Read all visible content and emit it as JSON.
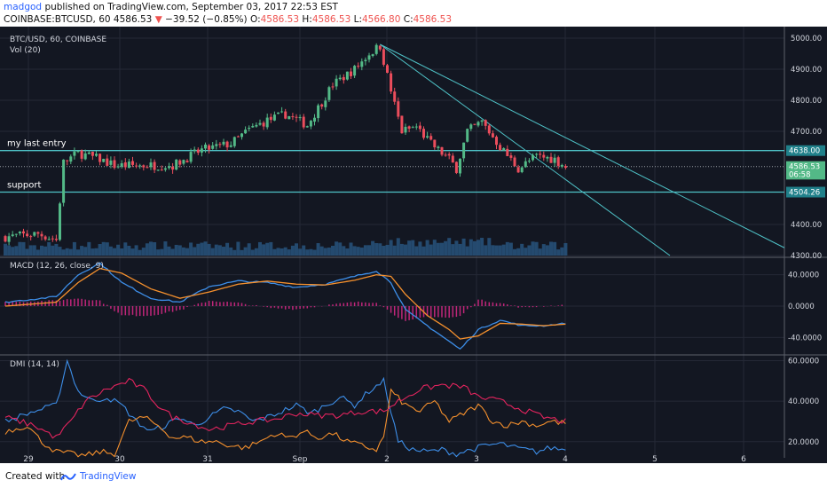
{
  "header": {
    "author": "madgod",
    "published_text": "published on TradingView.com, September 03, 2017 22:53 EST",
    "symbol_interval": "COINBASE:BTCUSD, 60",
    "last_price": "4586.53",
    "change": "−39.52 (−0.85%)",
    "ohlc": {
      "o_label": "O:",
      "o": "4586.53",
      "h_label": "H:",
      "h": "4586.53",
      "l_label": "L:",
      "l": "4566.80",
      "c_label": "C:",
      "c": "4586.53"
    }
  },
  "footer": {
    "created_with": "Created with",
    "brand": "TradingView"
  },
  "colors": {
    "background": "#131722",
    "up": "#53b987",
    "down": "#eb4d5c",
    "line_teal": "#4fc3c8",
    "macd": "#3d8ee8",
    "signal": "#f5902d",
    "hist": "#c0267a",
    "dmi_plus": "#3d8ee8",
    "dmi_minus": "#f5902d",
    "adx": "#e4245e",
    "volume": "#2b5c8a"
  },
  "chart_data": {
    "type": "candlestick",
    "title": "BTC/USD, 60, COINBASE",
    "volume_label": "Vol (20)",
    "y_ticks": [
      5000,
      4900,
      4800,
      4700,
      4400,
      4300
    ],
    "ylim": [
      4300,
      5020
    ],
    "x_ticks": [
      "29",
      "30",
      "31",
      "Sep",
      "2",
      "3",
      "4",
      "5",
      "6"
    ],
    "price_labels": {
      "top": "4638.00",
      "last": "4586.53",
      "countdown": "06:58",
      "bottom": "4504.26"
    },
    "levels": [
      {
        "name": "my last entry",
        "value": 4638
      },
      {
        "name": "support",
        "value": 4504.26
      }
    ],
    "price_keypoints": [
      [
        0,
        4360
      ],
      [
        9,
        4370
      ],
      [
        14,
        4350
      ],
      [
        16,
        4600
      ],
      [
        20,
        4630
      ],
      [
        26,
        4610
      ],
      [
        30,
        4590
      ],
      [
        38,
        4590
      ],
      [
        46,
        4590
      ],
      [
        54,
        4640
      ],
      [
        62,
        4660
      ],
      [
        67,
        4705
      ],
      [
        72,
        4735
      ],
      [
        77,
        4755
      ],
      [
        83,
        4720
      ],
      [
        90,
        4850
      ],
      [
        96,
        4900
      ],
      [
        100,
        4950
      ],
      [
        103,
        4975
      ],
      [
        106,
        4830
      ],
      [
        109,
        4700
      ],
      [
        113,
        4715
      ],
      [
        117,
        4660
      ],
      [
        122,
        4610
      ],
      [
        124,
        4580
      ],
      [
        127,
        4700
      ],
      [
        131,
        4730
      ],
      [
        136,
        4650
      ],
      [
        141,
        4580
      ],
      [
        146,
        4620
      ],
      [
        151,
        4610
      ],
      [
        154,
        4586
      ]
    ],
    "macd": {
      "label": "MACD (12, 26, close, 9)",
      "y_ticks": [
        "40.0000",
        "0.0000",
        "-40.0000"
      ],
      "ylim": [
        -60,
        60
      ],
      "macd_keypoints": [
        [
          0,
          5
        ],
        [
          14,
          12
        ],
        [
          20,
          40
        ],
        [
          26,
          55
        ],
        [
          32,
          30
        ],
        [
          40,
          10
        ],
        [
          48,
          5
        ],
        [
          56,
          25
        ],
        [
          64,
          32
        ],
        [
          72,
          30
        ],
        [
          80,
          24
        ],
        [
          88,
          28
        ],
        [
          96,
          38
        ],
        [
          102,
          45
        ],
        [
          106,
          30
        ],
        [
          110,
          -5
        ],
        [
          116,
          -25
        ],
        [
          122,
          -45
        ],
        [
          125,
          -55
        ],
        [
          130,
          -30
        ],
        [
          136,
          -18
        ],
        [
          142,
          -25
        ],
        [
          148,
          -25
        ],
        [
          154,
          -22
        ]
      ],
      "signal_keypoints": [
        [
          0,
          0
        ],
        [
          14,
          5
        ],
        [
          20,
          30
        ],
        [
          26,
          48
        ],
        [
          32,
          42
        ],
        [
          40,
          22
        ],
        [
          48,
          10
        ],
        [
          56,
          18
        ],
        [
          64,
          28
        ],
        [
          72,
          32
        ],
        [
          80,
          28
        ],
        [
          88,
          27
        ],
        [
          96,
          33
        ],
        [
          102,
          40
        ],
        [
          106,
          38
        ],
        [
          110,
          15
        ],
        [
          116,
          -12
        ],
        [
          122,
          -30
        ],
        [
          125,
          -42
        ],
        [
          130,
          -38
        ],
        [
          136,
          -22
        ],
        [
          142,
          -23
        ],
        [
          148,
          -25
        ],
        [
          154,
          -23
        ]
      ]
    },
    "dmi": {
      "label": "DMI (14, 14)",
      "y_ticks": [
        "60.0000",
        "40.0000",
        "20.0000"
      ],
      "ylim": [
        12,
        62
      ],
      "plus_di_keypoints": [
        [
          0,
          30
        ],
        [
          8,
          35
        ],
        [
          14,
          38
        ],
        [
          17,
          60
        ],
        [
          20,
          45
        ],
        [
          24,
          40
        ],
        [
          28,
          42
        ],
        [
          32,
          38
        ],
        [
          36,
          30
        ],
        [
          40,
          25
        ],
        [
          44,
          28
        ],
        [
          48,
          32
        ],
        [
          52,
          28
        ],
        [
          56,
          32
        ],
        [
          60,
          36
        ],
        [
          64,
          35
        ],
        [
          68,
          30
        ],
        [
          72,
          32
        ],
        [
          76,
          35
        ],
        [
          80,
          38
        ],
        [
          84,
          34
        ],
        [
          88,
          38
        ],
        [
          92,
          42
        ],
        [
          96,
          38
        ],
        [
          100,
          45
        ],
        [
          104,
          50
        ],
        [
          108,
          20
        ],
        [
          112,
          16
        ],
        [
          116,
          15
        ],
        [
          120,
          16
        ],
        [
          124,
          14
        ],
        [
          128,
          16
        ],
        [
          132,
          18
        ],
        [
          136,
          19
        ],
        [
          140,
          17
        ],
        [
          146,
          15
        ],
        [
          150,
          17
        ],
        [
          154,
          16
        ]
      ],
      "minus_di_keypoints": [
        [
          0,
          25
        ],
        [
          6,
          28
        ],
        [
          10,
          20
        ],
        [
          14,
          15
        ],
        [
          18,
          14
        ],
        [
          22,
          13
        ],
        [
          26,
          15
        ],
        [
          30,
          14
        ],
        [
          34,
          30
        ],
        [
          38,
          32
        ],
        [
          42,
          28
        ],
        [
          46,
          22
        ],
        [
          50,
          22
        ],
        [
          54,
          20
        ],
        [
          58,
          20
        ],
        [
          62,
          18
        ],
        [
          66,
          17
        ],
        [
          70,
          20
        ],
        [
          74,
          24
        ],
        [
          78,
          22
        ],
        [
          82,
          25
        ],
        [
          86,
          22
        ],
        [
          90,
          24
        ],
        [
          94,
          20
        ],
        [
          98,
          18
        ],
        [
          102,
          16
        ],
        [
          104,
          22
        ],
        [
          106,
          45
        ],
        [
          110,
          38
        ],
        [
          114,
          35
        ],
        [
          118,
          40
        ],
        [
          122,
          30
        ],
        [
          126,
          34
        ],
        [
          130,
          38
        ],
        [
          134,
          30
        ],
        [
          138,
          28
        ],
        [
          142,
          30
        ],
        [
          146,
          28
        ],
        [
          150,
          30
        ],
        [
          154,
          29
        ]
      ],
      "adx_keypoints": [
        [
          0,
          32
        ],
        [
          8,
          28
        ],
        [
          14,
          22
        ],
        [
          18,
          30
        ],
        [
          22,
          40
        ],
        [
          28,
          46
        ],
        [
          34,
          50
        ],
        [
          38,
          46
        ],
        [
          42,
          38
        ],
        [
          46,
          32
        ],
        [
          50,
          30
        ],
        [
          56,
          26
        ],
        [
          62,
          28
        ],
        [
          68,
          30
        ],
        [
          74,
          31
        ],
        [
          80,
          34
        ],
        [
          86,
          33
        ],
        [
          92,
          33
        ],
        [
          98,
          35
        ],
        [
          104,
          35
        ],
        [
          108,
          40
        ],
        [
          114,
          46
        ],
        [
          120,
          48
        ],
        [
          126,
          47
        ],
        [
          130,
          42
        ],
        [
          136,
          40
        ],
        [
          142,
          36
        ],
        [
          148,
          32
        ],
        [
          154,
          30
        ]
      ]
    }
  }
}
